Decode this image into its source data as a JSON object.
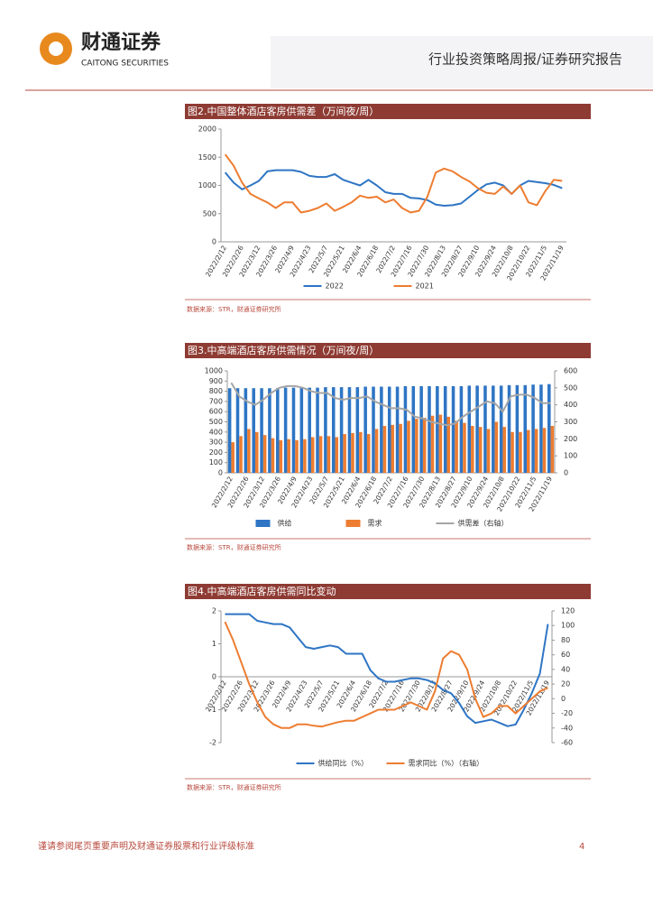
{
  "header": {
    "logo_cn": "财通证券",
    "logo_en": "CAITONG SECURITIES",
    "report_type": "行业投资策略周报/证券研究报告"
  },
  "footer": {
    "disclaimer": "谨请参阅尾页重要声明及财通证券股票和行业评级标准",
    "page": "4"
  },
  "chart_data": [
    {
      "type": "line",
      "title": "图2.中国整体酒店客房供需差（万间夜/周）",
      "source": "数据来源：STR，财通证券研究所",
      "categories": [
        "2022/2/12",
        null,
        "2022/2/26",
        null,
        "2022/3/12",
        null,
        "2022/3/26",
        null,
        "2022/4/9",
        null,
        "2022/4/23",
        null,
        "2022/5/7",
        null,
        "2022/5/21",
        null,
        "2022/6/4",
        null,
        "2022/6/18",
        null,
        "2022/7/2",
        null,
        "2022/7/16",
        null,
        "2022/7/30",
        null,
        "2022/8/13",
        null,
        "2022/8/27",
        null,
        "2022/9/10",
        null,
        "2022/9/24",
        null,
        "2022/10/8",
        null,
        "2022/10/22",
        null,
        "2022/11/5",
        null,
        "2022/11/19"
      ],
      "series": [
        {
          "name": "2022",
          "color": "#2e75c4",
          "values": [
            1230,
            1050,
            930,
            1000,
            1080,
            1250,
            1270,
            1270,
            1270,
            1240,
            1170,
            1150,
            1150,
            1200,
            1100,
            1050,
            1000,
            1100,
            1000,
            880,
            850,
            850,
            780,
            770,
            740,
            660,
            640,
            650,
            680,
            800,
            920,
            1020,
            1050,
            1000,
            850,
            1000,
            1080,
            1060,
            1040,
            1010,
            950
          ]
        },
        {
          "name": "2021",
          "color": "#ed7d31",
          "values": [
            1550,
            1350,
            1050,
            850,
            770,
            700,
            600,
            700,
            700,
            520,
            550,
            600,
            680,
            550,
            620,
            700,
            820,
            780,
            800,
            700,
            750,
            600,
            520,
            550,
            800,
            1230,
            1300,
            1250,
            1150,
            1070,
            950,
            870,
            850,
            980,
            850,
            1000,
            700,
            650,
            900,
            1100,
            1080
          ]
        }
      ],
      "ylim": [
        0,
        2000
      ],
      "yticks": [
        0,
        500,
        1000,
        1500,
        2000
      ]
    },
    {
      "type": "bar",
      "title": "图3.中高端酒店客房供需情况（万间夜/周）",
      "source": "数据来源：STR，财通证券研究所",
      "categories": [
        "2022/2/12",
        null,
        "2022/2/26",
        null,
        "2022/3/12",
        null,
        "2022/3/26",
        null,
        "2022/4/9",
        null,
        "2022/4/23",
        null,
        "2022/5/7",
        null,
        "2022/5/21",
        null,
        "2022/6/4",
        null,
        "2022/6/18",
        null,
        "2022/7/2",
        null,
        "2022/7/16",
        null,
        "2022/7/30",
        null,
        "2022/8/13",
        null,
        "2022/8/27",
        null,
        "2022/9/10",
        null,
        "2022/9/24",
        null,
        "2022/10/8",
        null,
        "2022/10/22",
        null,
        "2022/11/5",
        null,
        "2022/11/19"
      ],
      "series": [
        {
          "name": "供给",
          "color": "#2e75c4",
          "type": "bar",
          "values": [
            830,
            830,
            830,
            830,
            830,
            830,
            830,
            835,
            835,
            835,
            835,
            835,
            840,
            840,
            840,
            840,
            840,
            845,
            845,
            845,
            845,
            845,
            850,
            850,
            850,
            850,
            850,
            850,
            850,
            850,
            855,
            855,
            855,
            855,
            855,
            860,
            860,
            860,
            865,
            865,
            870
          ]
        },
        {
          "name": "需求",
          "color": "#ed7d31",
          "type": "bar",
          "values": [
            300,
            360,
            430,
            400,
            370,
            340,
            320,
            330,
            320,
            330,
            350,
            360,
            360,
            350,
            380,
            390,
            400,
            380,
            430,
            460,
            470,
            480,
            510,
            530,
            540,
            560,
            570,
            550,
            510,
            490,
            460,
            450,
            430,
            500,
            450,
            400,
            400,
            420,
            430,
            440,
            460
          ]
        },
        {
          "name": "供需差（右轴）",
          "color": "#a5a5a5",
          "type": "line",
          "axis": "y2",
          "values": [
            530,
            450,
            420,
            400,
            430,
            470,
            500,
            510,
            510,
            500,
            480,
            470,
            470,
            440,
            430,
            440,
            440,
            450,
            420,
            400,
            380,
            380,
            370,
            330,
            320,
            300,
            290,
            280,
            290,
            330,
            360,
            390,
            420,
            410,
            360,
            450,
            460,
            460,
            440,
            410,
            410
          ]
        }
      ],
      "ylim": [
        0,
        1000
      ],
      "yticks": [
        0,
        100,
        200,
        300,
        400,
        500,
        600,
        700,
        800,
        900,
        1000
      ],
      "y2lim": [
        0,
        600
      ],
      "y2ticks": [
        0,
        100,
        200,
        300,
        400,
        500,
        600
      ]
    },
    {
      "type": "line",
      "title": "图4.中高端酒店客房供需同比变动",
      "source": "数据来源：STR，财通证券研究所",
      "categories": [
        "2022/2/12",
        null,
        "2022/2/26",
        null,
        "2022/3/12",
        null,
        "2022/3/26",
        null,
        "2022/4/9",
        null,
        "2022/4/23",
        null,
        "2022/5/7",
        null,
        "2022/5/21",
        null,
        "2022/6/4",
        null,
        "2022/6/18",
        null,
        "2022/7/2",
        null,
        "2022/7/16",
        null,
        "2022/7/30",
        null,
        "2022/8/13",
        null,
        "2022/8/27",
        null,
        "2022/9/10",
        null,
        "2022/9/24",
        null,
        "2022/10/8",
        null,
        "2022/10/22",
        null,
        "2022/11/5",
        null,
        "2022/11/19"
      ],
      "series": [
        {
          "name": "供给同比（%）",
          "color": "#2e75c4",
          "values": [
            1.9,
            1.9,
            1.9,
            1.9,
            1.7,
            1.65,
            1.6,
            1.6,
            1.5,
            1.2,
            0.9,
            0.85,
            0.9,
            0.95,
            0.9,
            0.7,
            0.7,
            0.7,
            0.2,
            -0.05,
            -0.15,
            -0.15,
            -0.1,
            -0.05,
            -0.05,
            -0.1,
            -0.2,
            -0.4,
            -0.5,
            -0.8,
            -1.2,
            -1.4,
            -1.35,
            -1.3,
            -1.4,
            -1.5,
            -1.45,
            -1.0,
            -0.5,
            0.1,
            1.6
          ]
        },
        {
          "name": "需求同比（%）（右轴）",
          "color": "#ed7d31",
          "axis": "y2",
          "values": [
            105,
            80,
            50,
            20,
            -5,
            -25,
            -35,
            -40,
            -40,
            -35,
            -35,
            -37,
            -38,
            -35,
            -32,
            -30,
            -30,
            -25,
            -20,
            -15,
            -15,
            -15,
            -10,
            -5,
            -10,
            -15,
            10,
            55,
            65,
            60,
            40,
            0,
            -25,
            -20,
            -10,
            -10,
            -20,
            -10,
            0,
            10,
            15
          ]
        }
      ],
      "ylim": [
        -2,
        2
      ],
      "yticks": [
        -2,
        -1,
        0,
        1,
        2
      ],
      "y2lim": [
        -60,
        120
      ],
      "y2ticks": [
        -60,
        -40,
        -20,
        0,
        20,
        40,
        60,
        80,
        100,
        120
      ]
    }
  ]
}
